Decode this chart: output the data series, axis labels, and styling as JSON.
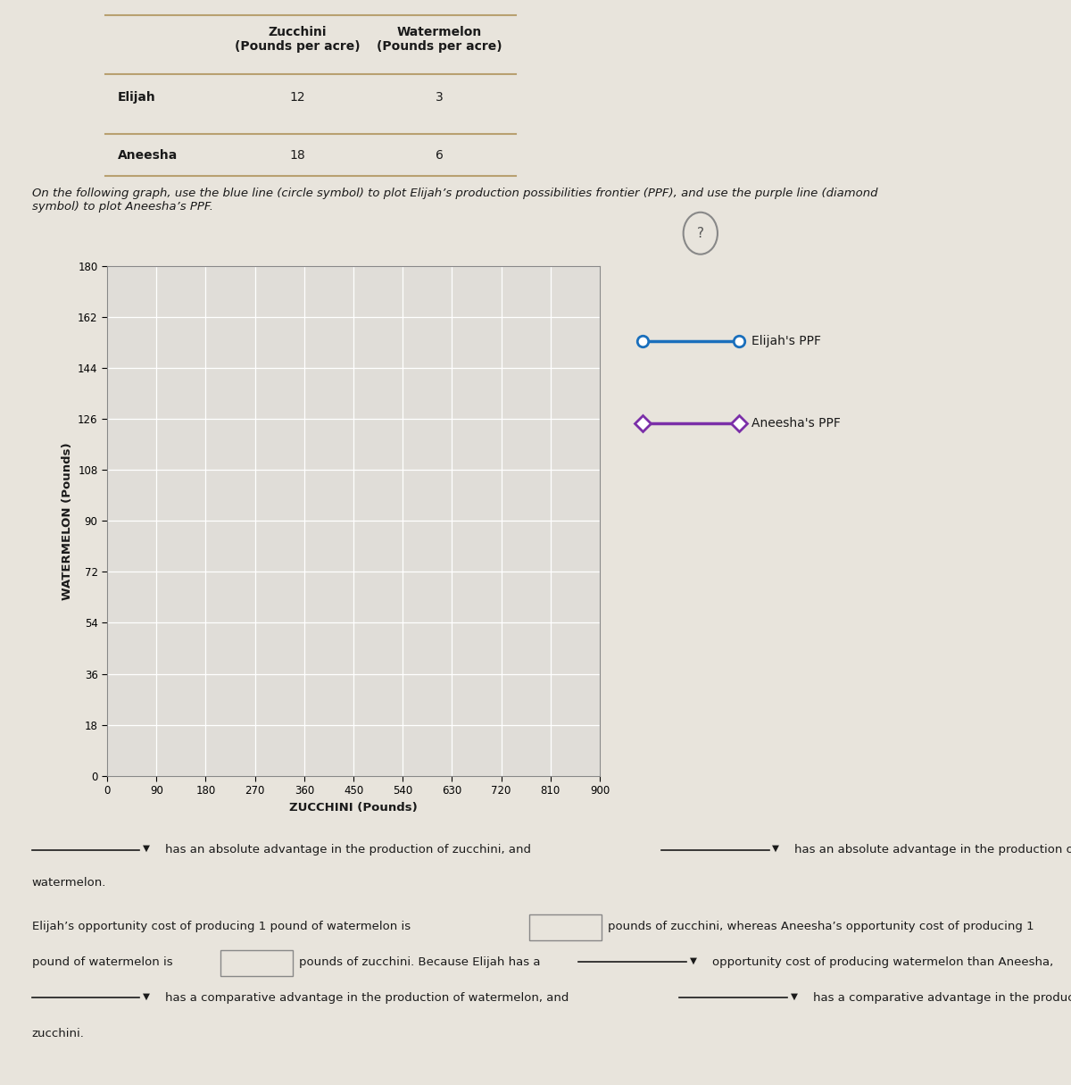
{
  "table": {
    "col1_header": "Zucchini\n(Pounds per acre)",
    "col2_header": "Watermelon\n(Pounds per acre)",
    "row1_label": "Elijah",
    "row2_label": "Aneesha",
    "row1_col1": "12",
    "row1_col2": "3",
    "row2_col1": "18",
    "row2_col2": "6"
  },
  "instruction_text": "On the following graph, use the blue line (circle symbol) to plot Elijah’s production possibilities frontier (PPF), and use the purple line (diamond\nsymbol) to plot Aneesha’s PPF.",
  "graph": {
    "xlabel": "ZUCCHINI (Pounds)",
    "ylabel": "WATERMELON (Pounds)",
    "xticks": [
      0,
      90,
      180,
      270,
      360,
      450,
      540,
      630,
      720,
      810,
      900
    ],
    "yticks": [
      0,
      18,
      36,
      54,
      72,
      90,
      108,
      126,
      144,
      162,
      180
    ],
    "xlim": [
      0,
      900
    ],
    "ylim": [
      0,
      180
    ],
    "elijah_color": "#1a6fbc",
    "aneesha_color": "#7b2fa8",
    "elijah_label": "Elijah's PPF",
    "aneesha_label": "Aneesha's PPF",
    "bg_color": "#e0ddd8",
    "grid_color": "#ffffff"
  },
  "line_color": "#b8a070",
  "bg_page_color": "#e8e4dc",
  "text_color": "#1a1a1a"
}
